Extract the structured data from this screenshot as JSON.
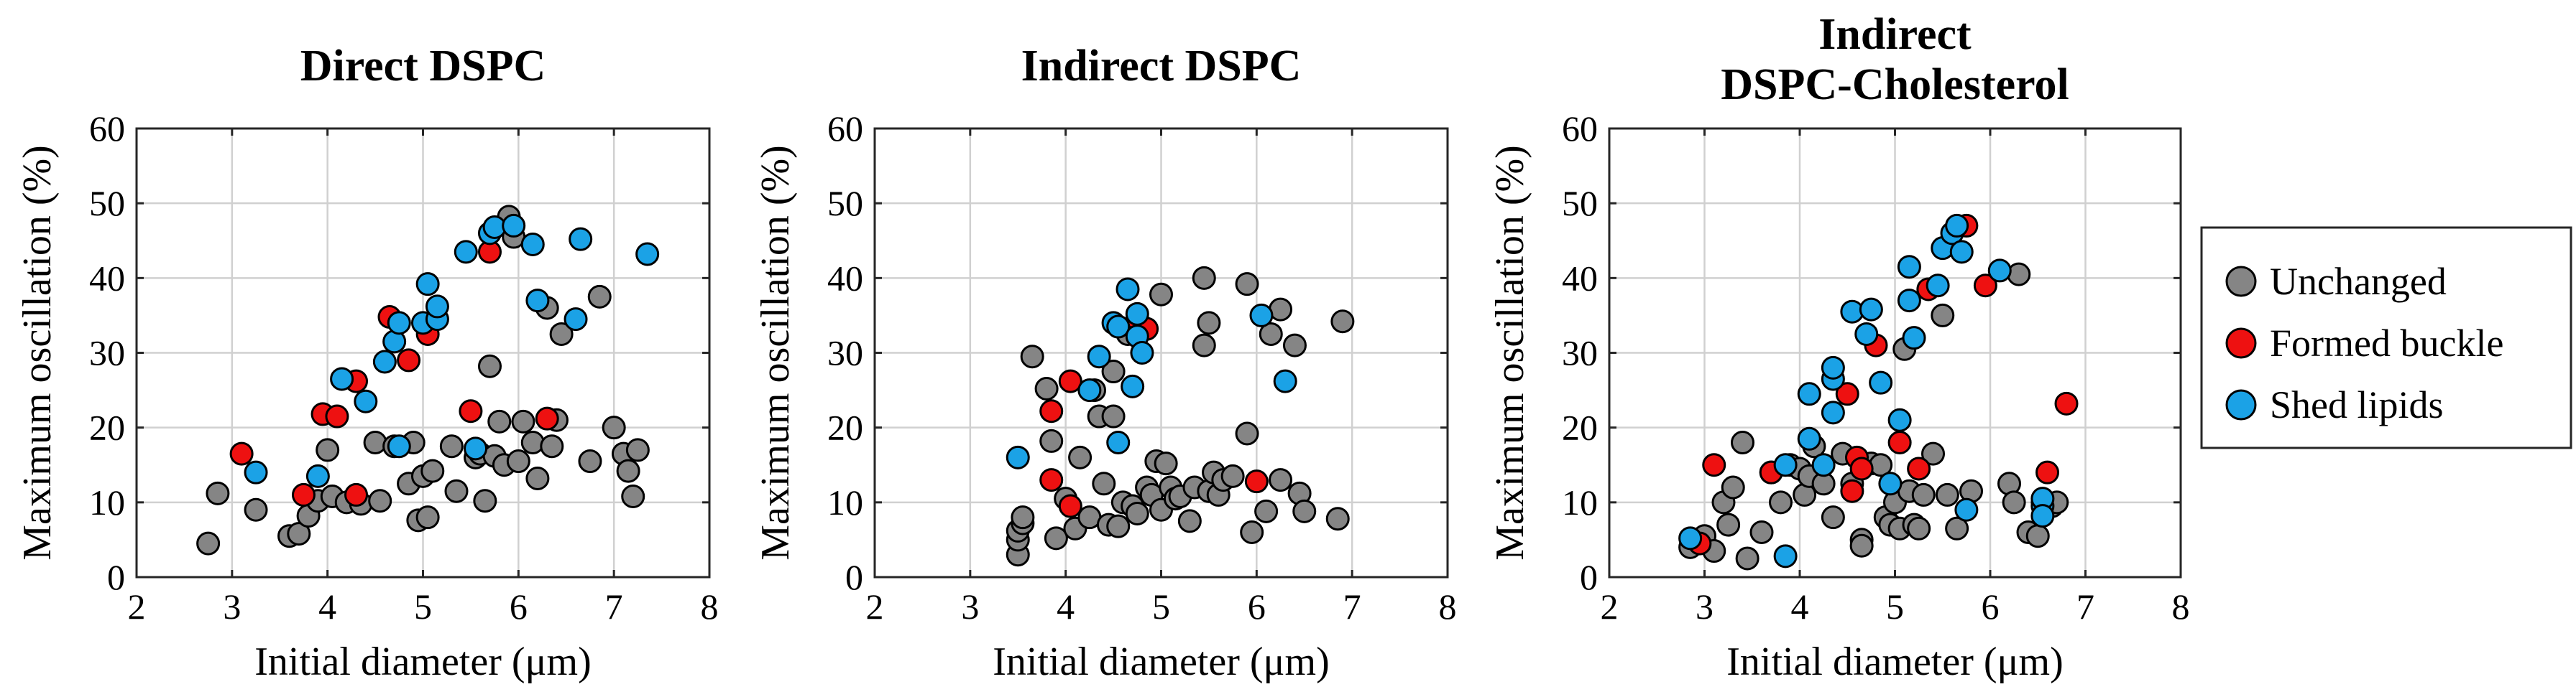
{
  "colors": {
    "Unchanged": "#858585",
    "Formed buckle": "#ee1111",
    "Shed lipids": "#1ba2e6"
  },
  "legend": [
    "Unchanged",
    "Formed buckle",
    "Shed lipids"
  ],
  "chart_data": [
    {
      "type": "scatter",
      "title": [
        "Direct DSPC"
      ],
      "xlabel": "Initial diameter (μm)",
      "ylabel": "Maximum oscillation (%)",
      "xlim": [
        2,
        8
      ],
      "ylim": [
        0,
        60
      ],
      "xticks": [
        2,
        3,
        4,
        5,
        6,
        7,
        8
      ],
      "yticks": [
        0,
        10,
        20,
        30,
        40,
        50,
        60
      ],
      "grid": true,
      "series": [
        {
          "name": "Unchanged",
          "points": [
            [
              2.75,
              4.5
            ],
            [
              2.85,
              11.2
            ],
            [
              3.25,
              9.0
            ],
            [
              3.6,
              5.5
            ],
            [
              3.7,
              5.8
            ],
            [
              3.8,
              8.2
            ],
            [
              3.9,
              10.2
            ],
            [
              4.0,
              17.0
            ],
            [
              4.05,
              10.8
            ],
            [
              4.2,
              10.0
            ],
            [
              4.35,
              9.8
            ],
            [
              4.5,
              18.0
            ],
            [
              4.55,
              10.2
            ],
            [
              4.7,
              17.5
            ],
            [
              4.85,
              12.5
            ],
            [
              4.9,
              18.0
            ],
            [
              4.95,
              7.6
            ],
            [
              5.0,
              13.5
            ],
            [
              5.05,
              8.0
            ],
            [
              5.1,
              14.2
            ],
            [
              5.3,
              17.5
            ],
            [
              5.35,
              11.5
            ],
            [
              5.55,
              16.0
            ],
            [
              5.6,
              16.5
            ],
            [
              5.65,
              10.2
            ],
            [
              5.7,
              28.2
            ],
            [
              5.75,
              16.2
            ],
            [
              5.8,
              20.8
            ],
            [
              5.85,
              15.0
            ],
            [
              5.9,
              48.2
            ],
            [
              5.95,
              45.5
            ],
            [
              6.0,
              15.5
            ],
            [
              6.05,
              20.8
            ],
            [
              6.15,
              18.0
            ],
            [
              6.2,
              13.2
            ],
            [
              6.3,
              36.0
            ],
            [
              6.35,
              17.5
            ],
            [
              6.4,
              21.0
            ],
            [
              6.45,
              32.5
            ],
            [
              6.75,
              15.5
            ],
            [
              6.85,
              37.5
            ],
            [
              7.0,
              20.0
            ],
            [
              7.1,
              16.5
            ],
            [
              7.15,
              14.2
            ],
            [
              7.2,
              10.8
            ],
            [
              7.25,
              17.0
            ]
          ]
        },
        {
          "name": "Formed buckle",
          "points": [
            [
              3.1,
              16.5
            ],
            [
              3.75,
              11.0
            ],
            [
              3.95,
              21.8
            ],
            [
              4.1,
              21.5
            ],
            [
              4.3,
              26.2
            ],
            [
              4.3,
              11.0
            ],
            [
              4.65,
              34.8
            ],
            [
              4.85,
              29.0
            ],
            [
              5.05,
              32.5
            ],
            [
              5.5,
              22.2
            ],
            [
              5.7,
              43.5
            ],
            [
              6.3,
              21.2
            ]
          ]
        },
        {
          "name": "Shed lipids",
          "points": [
            [
              3.25,
              14.0
            ],
            [
              3.9,
              13.5
            ],
            [
              4.15,
              26.5
            ],
            [
              4.4,
              23.5
            ],
            [
              4.6,
              28.8
            ],
            [
              4.7,
              31.5
            ],
            [
              4.75,
              17.5
            ],
            [
              4.75,
              34.0
            ],
            [
              5.0,
              34.0
            ],
            [
              5.05,
              39.2
            ],
            [
              5.15,
              34.5
            ],
            [
              5.15,
              36.2
            ],
            [
              5.45,
              43.5
            ],
            [
              5.55,
              17.2
            ],
            [
              5.7,
              46.0
            ],
            [
              5.75,
              46.8
            ],
            [
              5.95,
              47.0
            ],
            [
              6.15,
              44.5
            ],
            [
              6.2,
              37.0
            ],
            [
              6.6,
              34.5
            ],
            [
              6.65,
              45.2
            ],
            [
              7.35,
              43.2
            ]
          ]
        }
      ]
    },
    {
      "type": "scatter",
      "title": [
        "Indirect DSPC"
      ],
      "xlabel": "Initial diameter (μm)",
      "ylabel": "Maximum oscillation (%)",
      "xlim": [
        2,
        8
      ],
      "ylim": [
        0,
        60
      ],
      "xticks": [
        2,
        3,
        4,
        5,
        6,
        7,
        8
      ],
      "yticks": [
        0,
        10,
        20,
        30,
        40,
        50,
        60
      ],
      "grid": true,
      "series": [
        {
          "name": "Unchanged",
          "points": [
            [
              3.5,
              3.0
            ],
            [
              3.5,
              5.0
            ],
            [
              3.5,
              6.2
            ],
            [
              3.55,
              7.2
            ],
            [
              3.55,
              8.0
            ],
            [
              3.65,
              29.5
            ],
            [
              3.8,
              25.2
            ],
            [
              3.85,
              18.2
            ],
            [
              3.9,
              5.2
            ],
            [
              4.0,
              10.5
            ],
            [
              4.1,
              6.5
            ],
            [
              4.15,
              16.0
            ],
            [
              4.25,
              8.0
            ],
            [
              4.3,
              25.0
            ],
            [
              4.35,
              21.5
            ],
            [
              4.4,
              12.5
            ],
            [
              4.45,
              7.0
            ],
            [
              4.5,
              27.5
            ],
            [
              4.5,
              21.5
            ],
            [
              4.55,
              6.8
            ],
            [
              4.6,
              10.0
            ],
            [
              4.65,
              32.5
            ],
            [
              4.7,
              9.5
            ],
            [
              4.75,
              8.5
            ],
            [
              4.85,
              12.0
            ],
            [
              4.9,
              11.0
            ],
            [
              4.95,
              15.5
            ],
            [
              5.0,
              9.0
            ],
            [
              5.0,
              37.8
            ],
            [
              5.05,
              15.2
            ],
            [
              5.1,
              12.0
            ],
            [
              5.15,
              10.5
            ],
            [
              5.2,
              10.8
            ],
            [
              5.3,
              7.5
            ],
            [
              5.35,
              12.0
            ],
            [
              5.45,
              31.0
            ],
            [
              5.45,
              40.0
            ],
            [
              5.5,
              11.5
            ],
            [
              5.5,
              34.0
            ],
            [
              5.55,
              14.0
            ],
            [
              5.6,
              11.0
            ],
            [
              5.65,
              13.0
            ],
            [
              5.75,
              13.5
            ],
            [
              5.9,
              19.2
            ],
            [
              5.9,
              39.2
            ],
            [
              5.95,
              6.0
            ],
            [
              6.1,
              8.8
            ],
            [
              6.15,
              32.5
            ],
            [
              6.25,
              35.8
            ],
            [
              6.25,
              13.0
            ],
            [
              6.4,
              31.0
            ],
            [
              6.45,
              11.2
            ],
            [
              6.5,
              8.8
            ],
            [
              6.9,
              34.2
            ],
            [
              6.85,
              7.8
            ]
          ]
        },
        {
          "name": "Formed buckle",
          "points": [
            [
              3.85,
              22.2
            ],
            [
              3.85,
              13.0
            ],
            [
              4.05,
              26.2
            ],
            [
              4.05,
              9.5
            ],
            [
              4.75,
              34.5
            ],
            [
              4.85,
              33.2
            ],
            [
              6.0,
              12.8
            ]
          ]
        },
        {
          "name": "Shed lipids",
          "points": [
            [
              3.5,
              16.0
            ],
            [
              4.25,
              25.0
            ],
            [
              4.35,
              29.5
            ],
            [
              4.5,
              34.0
            ],
            [
              4.55,
              33.5
            ],
            [
              4.55,
              18.0
            ],
            [
              4.65,
              38.5
            ],
            [
              4.7,
              25.5
            ],
            [
              4.75,
              35.2
            ],
            [
              4.75,
              32.2
            ],
            [
              4.8,
              30.0
            ],
            [
              6.05,
              35.0
            ],
            [
              6.3,
              26.2
            ]
          ]
        }
      ]
    },
    {
      "type": "scatter",
      "title": [
        "Indirect",
        "DSPC-Cholesterol"
      ],
      "xlabel": "Initial diameter (μm)",
      "ylabel": "Maximum oscillation (%)",
      "xlim": [
        2,
        8
      ],
      "ylim": [
        0,
        60
      ],
      "xticks": [
        2,
        3,
        4,
        5,
        6,
        7,
        8
      ],
      "yticks": [
        0,
        10,
        20,
        30,
        40,
        50,
        60
      ],
      "grid": true,
      "series": [
        {
          "name": "Unchanged",
          "points": [
            [
              2.85,
              4.0
            ],
            [
              3.0,
              5.5
            ],
            [
              3.1,
              3.5
            ],
            [
              3.2,
              10.0
            ],
            [
              3.25,
              7.0
            ],
            [
              3.3,
              12.0
            ],
            [
              3.4,
              18.0
            ],
            [
              3.45,
              2.5
            ],
            [
              3.6,
              6.0
            ],
            [
              3.7,
              14.0
            ],
            [
              3.8,
              10.0
            ],
            [
              3.9,
              15.0
            ],
            [
              4.0,
              14.5
            ],
            [
              4.05,
              11.0
            ],
            [
              4.1,
              13.5
            ],
            [
              4.15,
              17.5
            ],
            [
              4.25,
              12.5
            ],
            [
              4.35,
              8.0
            ],
            [
              4.45,
              16.5
            ],
            [
              4.55,
              12.5
            ],
            [
              4.65,
              5.0
            ],
            [
              4.65,
              4.2
            ],
            [
              4.75,
              15.2
            ],
            [
              4.85,
              15.0
            ],
            [
              4.9,
              8.0
            ],
            [
              4.95,
              7.0
            ],
            [
              5.0,
              10.0
            ],
            [
              5.05,
              6.5
            ],
            [
              5.1,
              30.5
            ],
            [
              5.15,
              11.5
            ],
            [
              5.2,
              7.0
            ],
            [
              5.25,
              6.5
            ],
            [
              5.3,
              11.0
            ],
            [
              5.4,
              16.5
            ],
            [
              5.5,
              35.0
            ],
            [
              5.55,
              11.0
            ],
            [
              5.65,
              6.5
            ],
            [
              5.8,
              11.5
            ],
            [
              6.2,
              12.5
            ],
            [
              6.25,
              10.0
            ],
            [
              6.3,
              40.5
            ],
            [
              6.4,
              6.0
            ],
            [
              6.5,
              5.5
            ],
            [
              6.55,
              10.0
            ],
            [
              6.65,
              9.5
            ],
            [
              6.7,
              10.0
            ]
          ]
        },
        {
          "name": "Formed buckle",
          "points": [
            [
              2.95,
              4.5
            ],
            [
              3.1,
              15.0
            ],
            [
              3.7,
              14.0
            ],
            [
              4.5,
              24.5
            ],
            [
              4.55,
              11.5
            ],
            [
              4.6,
              16.0
            ],
            [
              4.65,
              14.5
            ],
            [
              4.8,
              31.0
            ],
            [
              5.05,
              18.0
            ],
            [
              5.25,
              14.5
            ],
            [
              5.35,
              38.5
            ],
            [
              5.75,
              47.0
            ],
            [
              5.95,
              39.0
            ],
            [
              6.6,
              14.0
            ],
            [
              6.8,
              23.2
            ]
          ]
        },
        {
          "name": "Shed lipids",
          "points": [
            [
              2.85,
              5.2
            ],
            [
              3.85,
              15.0
            ],
            [
              3.85,
              2.8
            ],
            [
              4.1,
              18.5
            ],
            [
              4.1,
              24.5
            ],
            [
              4.25,
              15.0
            ],
            [
              4.35,
              22.0
            ],
            [
              4.35,
              26.5
            ],
            [
              4.35,
              28.0
            ],
            [
              4.55,
              35.5
            ],
            [
              4.7,
              32.5
            ],
            [
              4.75,
              35.8
            ],
            [
              4.85,
              26.0
            ],
            [
              4.95,
              12.5
            ],
            [
              5.05,
              21.0
            ],
            [
              5.15,
              41.5
            ],
            [
              5.15,
              37.0
            ],
            [
              5.2,
              32.0
            ],
            [
              5.45,
              39.0
            ],
            [
              5.5,
              44.0
            ],
            [
              5.6,
              46.0
            ],
            [
              5.65,
              47.0
            ],
            [
              5.7,
              43.5
            ],
            [
              5.75,
              9.0
            ],
            [
              6.1,
              41.0
            ],
            [
              6.55,
              9.5
            ],
            [
              6.55,
              10.5
            ],
            [
              6.55,
              8.2
            ]
          ]
        }
      ]
    }
  ]
}
